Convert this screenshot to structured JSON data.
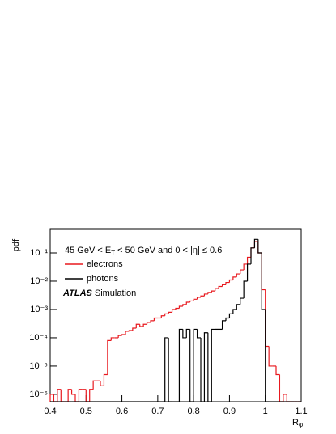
{
  "chart_data": {
    "type": "histogram",
    "y_label": "pdf",
    "x_label": "R",
    "x_label_sub": "φ",
    "annotation_parts": [
      "45 GeV < E",
      "T",
      " < 50 GeV and 0 < |η| ≤ 0.6"
    ],
    "atlas_label": "ATLAS",
    "atlas_sub": "Simulation",
    "log_y": true,
    "xlim": [
      0.4,
      1.1
    ],
    "xticks": [
      0.4,
      0.5,
      0.6,
      0.7,
      0.8,
      0.9,
      1,
      1.1
    ],
    "ylim": [
      5.5e-07,
      0.72
    ],
    "yticks": [
      {
        "value": 1e-06,
        "label": "10⁻⁶"
      },
      {
        "value": 1e-05,
        "label": "10⁻⁵"
      },
      {
        "value": 0.0001,
        "label": "10⁻⁴"
      },
      {
        "value": 0.001,
        "label": "10⁻³"
      },
      {
        "value": 0.01,
        "label": "10⁻²"
      },
      {
        "value": 0.1,
        "label": "10⁻¹"
      }
    ],
    "bins": [
      0.4,
      0.41,
      0.42,
      0.43,
      0.44,
      0.45,
      0.46,
      0.47,
      0.48,
      0.49,
      0.5,
      0.51,
      0.52,
      0.53,
      0.54,
      0.55,
      0.56,
      0.57,
      0.58,
      0.59,
      0.6,
      0.61,
      0.62,
      0.63,
      0.64,
      0.65,
      0.66,
      0.67,
      0.68,
      0.69,
      0.7,
      0.71,
      0.72,
      0.73,
      0.74,
      0.75,
      0.76,
      0.77,
      0.78,
      0.79,
      0.8,
      0.81,
      0.82,
      0.83,
      0.84,
      0.85,
      0.86,
      0.87,
      0.88,
      0.89,
      0.9,
      0.91,
      0.92,
      0.93,
      0.94,
      0.95,
      0.96,
      0.97,
      0.98,
      0.99,
      1.0,
      1.01,
      1.02,
      1.03,
      1.04,
      1.05,
      1.06,
      1.07,
      1.08,
      1.09,
      1.1
    ],
    "series": [
      {
        "name": "electrons",
        "color": "#e8191f",
        "values": [
          1e-06,
          0,
          1.5e-06,
          0,
          0,
          1.5e-06,
          1e-06,
          0,
          1.5e-06,
          1.5e-06,
          0,
          1.5e-06,
          3e-06,
          3e-06,
          2e-06,
          5e-06,
          8e-05,
          0.0001,
          0.0001,
          0.00012,
          0.00013,
          0.00017,
          0.00018,
          0.00022,
          0.0003,
          0.00025,
          0.0003,
          0.00035,
          0.0004,
          0.0005,
          0.0005,
          0.0006,
          0.0007,
          0.0008,
          0.001,
          0.0011,
          0.0013,
          0.0015,
          0.0018,
          0.002,
          0.0023,
          0.0027,
          0.003,
          0.0035,
          0.004,
          0.0045,
          0.0055,
          0.0065,
          0.0075,
          0.009,
          0.011,
          0.014,
          0.018,
          0.025,
          0.04,
          0.07,
          0.15,
          0.25,
          0.1,
          0.005,
          5e-05,
          1e-05,
          1e-05,
          5e-06,
          0,
          1e-06,
          0,
          0,
          0,
          0
        ]
      },
      {
        "name": "photons",
        "color": "#000000",
        "values": [
          0,
          0,
          0,
          0,
          0,
          0,
          0,
          0,
          0,
          0,
          0,
          0,
          0,
          0,
          0,
          0,
          0,
          0,
          0,
          0,
          0,
          0,
          0,
          0,
          0,
          0,
          0,
          0,
          0,
          0,
          0,
          0,
          0.0001,
          0,
          0,
          0,
          0.0002,
          0.0001,
          0.0002,
          0,
          0.0002,
          0.0001,
          0,
          0.00015,
          0,
          0.0002,
          0.0002,
          0.0002,
          0.0004,
          0.0005,
          0.0007,
          0.001,
          0.0015,
          0.0025,
          0.01,
          0.04,
          0.15,
          0.3,
          0.1,
          0.001,
          0,
          0,
          0,
          0,
          0,
          0,
          0,
          0,
          0,
          0
        ]
      }
    ]
  }
}
